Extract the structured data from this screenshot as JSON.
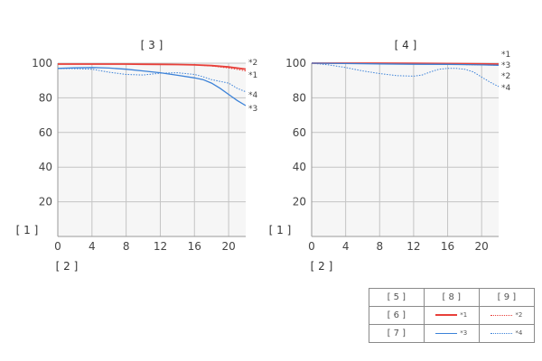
{
  "chart_data": [
    {
      "type": "line",
      "title": "[ 3 ]",
      "ylabel": "[ 1 ]",
      "xlabel": "[ 2 ]",
      "xlim": [
        0,
        22
      ],
      "ylim": [
        0,
        100
      ],
      "xticks": [
        0,
        4,
        8,
        12,
        16,
        20
      ],
      "yticks": [
        20,
        40,
        60,
        80,
        100
      ],
      "grid": true,
      "series": [
        {
          "name": "*1",
          "color": "#e8403a",
          "style": "solid",
          "x": [
            0,
            2,
            4,
            6,
            8,
            10,
            12,
            14,
            16,
            18,
            20,
            21,
            22
          ],
          "y": [
            99.5,
            99.5,
            99.5,
            99.5,
            99.5,
            99.4,
            99.3,
            99.2,
            99.0,
            98.6,
            97.8,
            97.2,
            96.5
          ]
        },
        {
          "name": "*2",
          "color": "#e8403a",
          "style": "dotted",
          "x": [
            0,
            2,
            4,
            6,
            8,
            10,
            12,
            14,
            16,
            18,
            20,
            21,
            22
          ],
          "y": [
            99.5,
            99.5,
            99.5,
            99.5,
            99.5,
            99.4,
            99.3,
            99.2,
            99.0,
            98.4,
            97.2,
            96.4,
            95.5
          ]
        },
        {
          "name": "*3",
          "color": "#3c82d8",
          "style": "solid",
          "x": [
            0,
            2,
            4,
            6,
            8,
            10,
            12,
            14,
            16,
            17,
            18,
            19,
            20,
            21,
            22
          ],
          "y": [
            97,
            97.3,
            97.5,
            97.2,
            96.5,
            95.5,
            94.5,
            93,
            91.5,
            90.5,
            88.5,
            85.5,
            82,
            78.5,
            75.5
          ]
        },
        {
          "name": "*4",
          "color": "#3c82d8",
          "style": "dotted",
          "x": [
            0,
            2,
            4,
            6,
            8,
            10,
            12,
            14,
            16,
            17,
            18,
            19,
            20,
            21,
            22
          ],
          "y": [
            97,
            96.8,
            96.5,
            94.8,
            93.5,
            93.2,
            94.2,
            94.5,
            93.5,
            92.2,
            90.5,
            89.5,
            88.5,
            85.5,
            83.5
          ]
        }
      ],
      "end_labels": [
        "*2",
        "*1",
        "*4",
        "*3"
      ]
    },
    {
      "type": "line",
      "title": "[ 4 ]",
      "ylabel": "[ 1 ]",
      "xlabel": "[ 2 ]",
      "xlim": [
        0,
        22
      ],
      "ylim": [
        0,
        100
      ],
      "xticks": [
        0,
        4,
        8,
        12,
        16,
        20
      ],
      "yticks": [
        20,
        40,
        60,
        80,
        100
      ],
      "grid": true,
      "series": [
        {
          "name": "*1",
          "color": "#e8403a",
          "style": "solid",
          "x": [
            0,
            4,
            8,
            12,
            16,
            20,
            22
          ],
          "y": [
            100,
            100,
            100,
            99.9,
            99.8,
            99.6,
            99.5
          ]
        },
        {
          "name": "*3",
          "color": "#3c82d8",
          "style": "solid",
          "x": [
            0,
            4,
            8,
            12,
            16,
            20,
            22
          ],
          "y": [
            100,
            99.8,
            99.6,
            99.4,
            99.3,
            99.0,
            98.8
          ]
        },
        {
          "name": "*2",
          "color": "#e8403a",
          "style": "dotted",
          "x": [
            0,
            4,
            8,
            12,
            16,
            20,
            22
          ],
          "y": [
            100,
            99.9,
            99.8,
            99.6,
            99.4,
            99.0,
            98.8
          ]
        },
        {
          "name": "*4",
          "color": "#3c82d8",
          "style": "dotted",
          "x": [
            0,
            2,
            4,
            6,
            8,
            10,
            12,
            13,
            14,
            15,
            16,
            17,
            18,
            19,
            20,
            21,
            22
          ],
          "y": [
            100,
            99,
            97.5,
            95.5,
            94,
            92.8,
            92.5,
            93.2,
            95,
            96.5,
            97,
            97,
            96.5,
            95,
            92,
            89,
            86.5
          ]
        }
      ],
      "end_labels": [
        "*1",
        "*3",
        "*2",
        "*4"
      ]
    }
  ],
  "legend": {
    "header": [
      "[ 5 ]",
      "[ 8 ]",
      "[ 9 ]"
    ],
    "rows": [
      {
        "label": "[ 6 ]",
        "solid": "*1",
        "dotted": "*2",
        "color": "#e8403a"
      },
      {
        "label": "[ 7 ]",
        "solid": "*3",
        "dotted": "*4",
        "color": "#3c82d8"
      }
    ]
  }
}
